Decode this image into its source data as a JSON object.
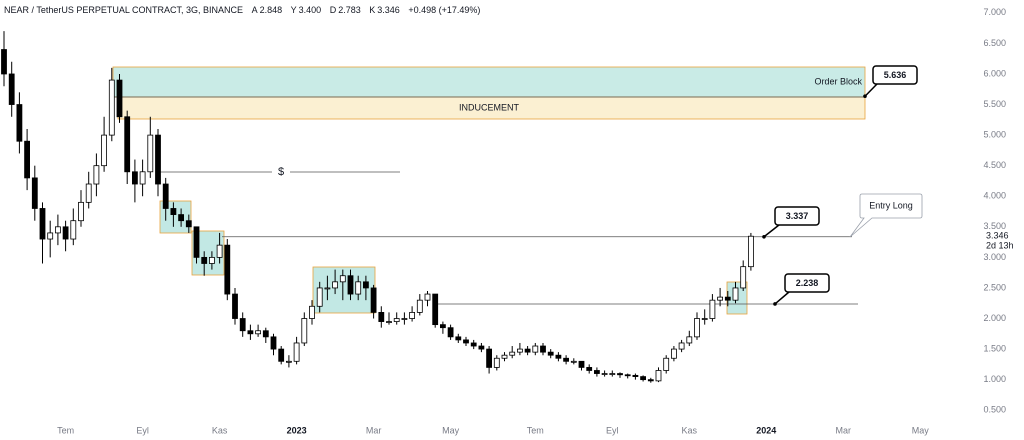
{
  "header": {
    "symbol": "NEAR / TetherUS PERPETUAL CONTRACT, 3G, BINANCE",
    "o_key": "A",
    "o": "2.848",
    "h_key": "Y",
    "h": "3.400",
    "l_key": "D",
    "l": "2.783",
    "c_key": "K",
    "c": "3.346",
    "change": "+0.498 (+17.49%)"
  },
  "chart_data": {
    "type": "candlestick",
    "up_color": "#ffffff",
    "down_color": "#000000",
    "line_color": "#000000",
    "ylim": [
      0.34,
      7.21
    ],
    "yticks": [
      {
        "value": 0.5,
        "label": "0.500"
      },
      {
        "value": 1,
        "label": "1.000"
      },
      {
        "value": 1.5,
        "label": "1.500"
      },
      {
        "value": 2,
        "label": "2.000"
      },
      {
        "value": 2.5,
        "label": "2.500"
      },
      {
        "value": 3,
        "label": "3.000"
      },
      {
        "value": 3.5,
        "label": "3.500"
      },
      {
        "value": 4,
        "label": "4.000"
      },
      {
        "value": 4.5,
        "label": "4.500"
      },
      {
        "value": 5,
        "label": "5.000"
      },
      {
        "value": 5.5,
        "label": "5.500"
      },
      {
        "value": 6,
        "label": "6.000"
      },
      {
        "value": 6.5,
        "label": "6.500"
      },
      {
        "value": 7,
        "label": "7.000"
      }
    ],
    "categories": [
      null,
      null,
      null,
      null,
      null,
      null,
      null,
      null,
      "Tem",
      null,
      null,
      null,
      null,
      null,
      null,
      null,
      null,
      null,
      "Eyl",
      null,
      null,
      null,
      null,
      null,
      null,
      null,
      null,
      null,
      "Kas",
      null,
      null,
      null,
      null,
      null,
      null,
      null,
      null,
      null,
      "2023",
      null,
      null,
      null,
      null,
      null,
      null,
      null,
      null,
      null,
      "Mar",
      null,
      null,
      null,
      null,
      null,
      null,
      null,
      null,
      null,
      "May",
      null,
      null,
      null,
      null,
      null,
      null,
      null,
      null,
      null,
      null,
      "Tem",
      null,
      null,
      null,
      null,
      null,
      null,
      null,
      null,
      null,
      "Eyl",
      null,
      null,
      null,
      null,
      null,
      null,
      null,
      null,
      null,
      "Kas",
      null,
      null,
      null,
      null,
      null,
      null,
      null,
      null,
      null,
      "2024",
      null,
      null,
      null,
      null,
      null,
      null,
      null,
      null,
      null,
      "Mar",
      null,
      null,
      null,
      null,
      null,
      null,
      null,
      null,
      null,
      "May",
      null,
      null,
      null,
      null,
      null
    ],
    "ohlc": [
      [
        6.4,
        6.7,
        5.8,
        6.0
      ],
      [
        6.0,
        6.2,
        5.3,
        5.5
      ],
      [
        5.5,
        5.7,
        4.7,
        4.9
      ],
      [
        4.9,
        5.1,
        4.1,
        4.3
      ],
      [
        4.3,
        4.5,
        3.6,
        3.8
      ],
      [
        3.8,
        3.9,
        2.9,
        3.3
      ],
      [
        3.3,
        3.6,
        3.0,
        3.4
      ],
      [
        3.4,
        3.7,
        3.2,
        3.5
      ],
      [
        3.5,
        3.6,
        3.1,
        3.3
      ],
      [
        3.3,
        3.8,
        3.2,
        3.6
      ],
      [
        3.6,
        4.1,
        3.5,
        3.9
      ],
      [
        3.9,
        4.4,
        3.8,
        4.2
      ],
      [
        4.2,
        4.7,
        4.0,
        4.5
      ],
      [
        4.5,
        5.3,
        4.4,
        5.0
      ],
      [
        5.0,
        6.1,
        4.9,
        5.9
      ],
      [
        5.9,
        6.0,
        5.2,
        5.3
      ],
      [
        5.3,
        5.4,
        4.2,
        4.4
      ],
      [
        4.4,
        4.6,
        3.9,
        4.2
      ],
      [
        4.2,
        4.6,
        4.0,
        4.4
      ],
      [
        4.4,
        5.3,
        4.3,
        5.0
      ],
      [
        5.0,
        5.1,
        4.0,
        4.2
      ],
      [
        4.2,
        4.3,
        3.6,
        3.8
      ],
      [
        3.8,
        3.9,
        3.5,
        3.7
      ],
      [
        3.7,
        3.8,
        3.5,
        3.6
      ],
      [
        3.6,
        3.7,
        3.4,
        3.5
      ],
      [
        3.5,
        3.5,
        2.9,
        3.0
      ],
      [
        3.0,
        3.1,
        2.7,
        2.9
      ],
      [
        2.9,
        3.1,
        2.8,
        3.0
      ],
      [
        3.0,
        3.4,
        2.9,
        3.2
      ],
      [
        3.2,
        3.3,
        2.3,
        2.4
      ],
      [
        2.4,
        2.5,
        1.9,
        2.0
      ],
      [
        2.0,
        2.1,
        1.7,
        1.8
      ],
      [
        1.8,
        1.9,
        1.65,
        1.75
      ],
      [
        1.75,
        1.9,
        1.7,
        1.8
      ],
      [
        1.8,
        1.85,
        1.6,
        1.7
      ],
      [
        1.7,
        1.75,
        1.4,
        1.5
      ],
      [
        1.5,
        1.55,
        1.25,
        1.3
      ],
      [
        1.3,
        1.4,
        1.2,
        1.3
      ],
      [
        1.3,
        1.7,
        1.25,
        1.6
      ],
      [
        1.6,
        2.1,
        1.55,
        2.0
      ],
      [
        2.0,
        2.3,
        1.9,
        2.2
      ],
      [
        2.2,
        2.6,
        2.1,
        2.5
      ],
      [
        2.5,
        2.7,
        2.3,
        2.5
      ],
      [
        2.5,
        2.8,
        2.4,
        2.6
      ],
      [
        2.6,
        2.8,
        2.3,
        2.7
      ],
      [
        2.7,
        2.8,
        2.3,
        2.4
      ],
      [
        2.4,
        2.7,
        2.3,
        2.6
      ],
      [
        2.6,
        2.7,
        2.3,
        2.5
      ],
      [
        2.5,
        2.55,
        2.0,
        2.1
      ],
      [
        2.1,
        2.2,
        1.85,
        1.95
      ],
      [
        1.95,
        2.1,
        1.9,
        1.95
      ],
      [
        1.95,
        2.1,
        1.9,
        2.0
      ],
      [
        2.0,
        2.1,
        1.9,
        2.0
      ],
      [
        2.0,
        2.2,
        1.95,
        2.1
      ],
      [
        2.1,
        2.4,
        2.05,
        2.3
      ],
      [
        2.3,
        2.45,
        2.2,
        2.4
      ],
      [
        2.4,
        2.4,
        1.85,
        1.9
      ],
      [
        1.9,
        1.95,
        1.75,
        1.85
      ],
      [
        1.85,
        1.9,
        1.65,
        1.7
      ],
      [
        1.7,
        1.75,
        1.6,
        1.65
      ],
      [
        1.65,
        1.7,
        1.55,
        1.6
      ],
      [
        1.6,
        1.65,
        1.5,
        1.55
      ],
      [
        1.55,
        1.6,
        1.45,
        1.5
      ],
      [
        1.5,
        1.55,
        1.1,
        1.2
      ],
      [
        1.2,
        1.4,
        1.15,
        1.35
      ],
      [
        1.35,
        1.45,
        1.3,
        1.4
      ],
      [
        1.4,
        1.55,
        1.35,
        1.45
      ],
      [
        1.45,
        1.6,
        1.4,
        1.5
      ],
      [
        1.5,
        1.55,
        1.4,
        1.45
      ],
      [
        1.45,
        1.6,
        1.4,
        1.55
      ],
      [
        1.55,
        1.6,
        1.4,
        1.45
      ],
      [
        1.45,
        1.5,
        1.35,
        1.4
      ],
      [
        1.4,
        1.45,
        1.3,
        1.35
      ],
      [
        1.35,
        1.4,
        1.25,
        1.3
      ],
      [
        1.3,
        1.35,
        1.25,
        1.3
      ],
      [
        1.3,
        1.3,
        1.15,
        1.2
      ],
      [
        1.2,
        1.25,
        1.1,
        1.15
      ],
      [
        1.15,
        1.2,
        1.05,
        1.1
      ],
      [
        1.1,
        1.15,
        1.05,
        1.1
      ],
      [
        1.1,
        1.15,
        1.05,
        1.1
      ],
      [
        1.1,
        1.12,
        1.03,
        1.08
      ],
      [
        1.08,
        1.1,
        1.02,
        1.07
      ],
      [
        1.07,
        1.1,
        1.0,
        1.05
      ],
      [
        1.05,
        1.07,
        0.97,
        1.0
      ],
      [
        1.0,
        1.03,
        0.95,
        0.98
      ],
      [
        0.98,
        1.2,
        0.96,
        1.15
      ],
      [
        1.15,
        1.4,
        1.1,
        1.35
      ],
      [
        1.35,
        1.55,
        1.3,
        1.5
      ],
      [
        1.5,
        1.65,
        1.45,
        1.6
      ],
      [
        1.6,
        1.8,
        1.55,
        1.7
      ],
      [
        1.7,
        2.1,
        1.65,
        2.0
      ],
      [
        2.0,
        2.15,
        1.9,
        2.0
      ],
      [
        2.0,
        2.4,
        1.95,
        2.3
      ],
      [
        2.3,
        2.5,
        2.2,
        2.35
      ],
      [
        2.35,
        2.45,
        2.2,
        2.3
      ],
      [
        2.3,
        2.6,
        2.25,
        2.5
      ],
      [
        2.5,
        2.95,
        2.45,
        2.848
      ],
      [
        2.848,
        3.4,
        2.783,
        3.346
      ],
      null,
      null,
      null,
      null,
      null,
      null,
      null,
      null,
      null,
      null,
      null,
      null,
      null,
      null,
      null,
      null,
      null,
      null,
      null,
      null,
      null,
      null,
      null,
      null,
      null,
      null,
      null
    ],
    "price_callouts": [
      5.636,
      3.337,
      2.238
    ],
    "annotations": {
      "order_block": "Order Block",
      "inducement": "INDUCEMENT",
      "liquidity": "$",
      "entry": "Entry Long"
    },
    "countdown": "2d 13h"
  }
}
